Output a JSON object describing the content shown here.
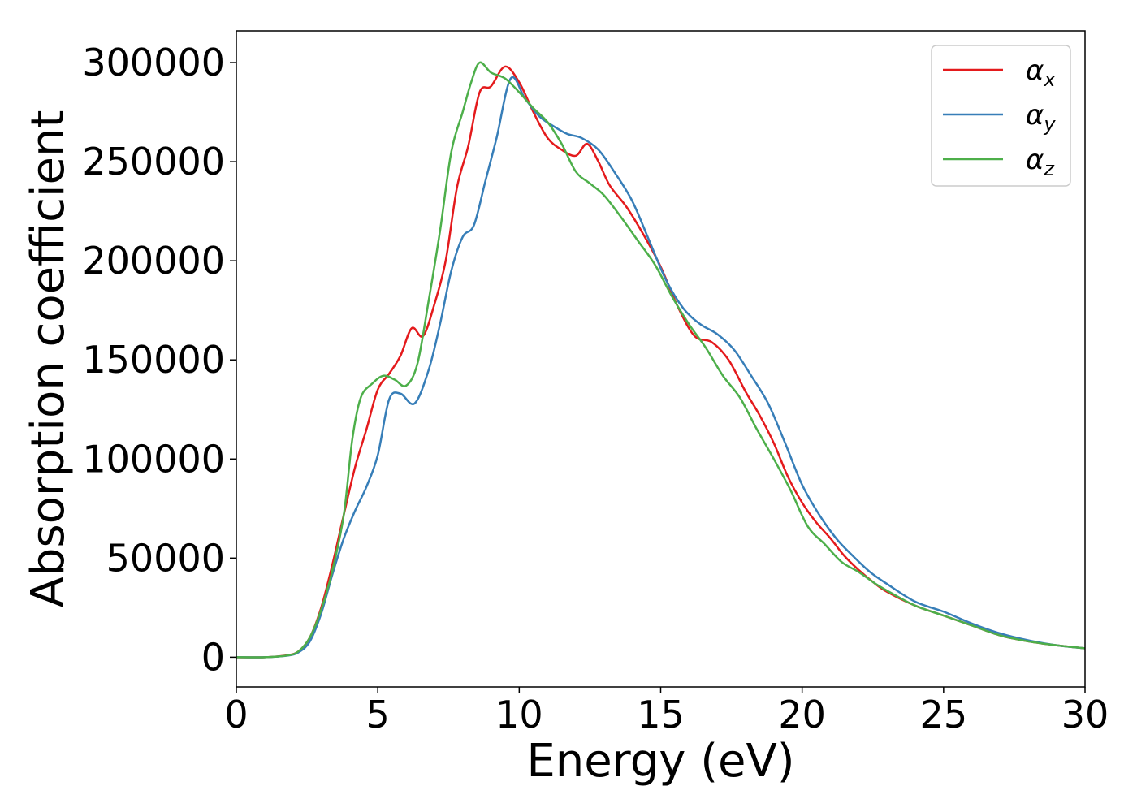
{
  "chart_data": {
    "type": "line",
    "title": "",
    "xlabel": "Energy (eV)",
    "ylabel": "Absorption coefficient",
    "xlim": [
      0,
      30
    ],
    "ylim": [
      -15000,
      316000
    ],
    "xticks": [
      0,
      5,
      10,
      15,
      20,
      25,
      30
    ],
    "yticks": [
      0,
      50000,
      100000,
      150000,
      200000,
      250000,
      300000
    ],
    "xtick_labels": [
      "0",
      "5",
      "10",
      "15",
      "20",
      "25",
      "30"
    ],
    "ytick_labels": [
      "0",
      "50000",
      "100000",
      "150000",
      "200000",
      "250000",
      "300000"
    ],
    "grid": false,
    "legend_position": "top-right",
    "series": [
      {
        "name": "αx",
        "symbol": "α",
        "subscript": "x",
        "color": "#e41a1c",
        "points": [
          [
            0,
            0
          ],
          [
            1,
            0
          ],
          [
            1.8,
            1000
          ],
          [
            2.2,
            3000
          ],
          [
            2.6,
            10000
          ],
          [
            3,
            25000
          ],
          [
            3.4,
            47000
          ],
          [
            3.8,
            72000
          ],
          [
            4.2,
            96000
          ],
          [
            4.6,
            115000
          ],
          [
            5.0,
            135000
          ],
          [
            5.4,
            143000
          ],
          [
            5.8,
            152000
          ],
          [
            6.2,
            166000
          ],
          [
            6.6,
            162000
          ],
          [
            7.0,
            178000
          ],
          [
            7.4,
            200000
          ],
          [
            7.8,
            237000
          ],
          [
            8.2,
            258000
          ],
          [
            8.6,
            285000
          ],
          [
            9.0,
            288000
          ],
          [
            9.5,
            298000
          ],
          [
            10.0,
            290000
          ],
          [
            10.5,
            275000
          ],
          [
            11.0,
            262000
          ],
          [
            11.5,
            256000
          ],
          [
            12.0,
            253000
          ],
          [
            12.4,
            259000
          ],
          [
            12.8,
            250000
          ],
          [
            13.2,
            238000
          ],
          [
            13.8,
            227000
          ],
          [
            14.4,
            213000
          ],
          [
            15.0,
            197000
          ],
          [
            15.6,
            177000
          ],
          [
            16.2,
            162000
          ],
          [
            16.8,
            159000
          ],
          [
            17.4,
            150000
          ],
          [
            18.0,
            134000
          ],
          [
            18.5,
            122000
          ],
          [
            19.0,
            108000
          ],
          [
            19.5,
            91000
          ],
          [
            20.0,
            78000
          ],
          [
            20.5,
            68000
          ],
          [
            21.0,
            60000
          ],
          [
            21.5,
            51000
          ],
          [
            22.0,
            44000
          ],
          [
            22.5,
            38000
          ],
          [
            23.0,
            33000
          ],
          [
            24.0,
            26000
          ],
          [
            25.0,
            21000
          ],
          [
            26.0,
            16000
          ],
          [
            27.0,
            11000
          ],
          [
            28.0,
            8000
          ],
          [
            29.0,
            6000
          ],
          [
            30.0,
            4500
          ]
        ]
      },
      {
        "name": "αy",
        "symbol": "α",
        "subscript": "y",
        "color": "#377eb8",
        "points": [
          [
            0,
            0
          ],
          [
            1,
            0
          ],
          [
            1.8,
            800
          ],
          [
            2.2,
            2500
          ],
          [
            2.6,
            8000
          ],
          [
            3,
            22000
          ],
          [
            3.4,
            42000
          ],
          [
            3.8,
            60000
          ],
          [
            4.2,
            74000
          ],
          [
            4.6,
            86000
          ],
          [
            5.0,
            102000
          ],
          [
            5.4,
            130000
          ],
          [
            5.8,
            133000
          ],
          [
            6.3,
            128000
          ],
          [
            6.8,
            145000
          ],
          [
            7.2,
            168000
          ],
          [
            7.6,
            195000
          ],
          [
            8.0,
            212000
          ],
          [
            8.4,
            218000
          ],
          [
            8.8,
            240000
          ],
          [
            9.2,
            262000
          ],
          [
            9.7,
            292000
          ],
          [
            10.2,
            282000
          ],
          [
            10.7,
            273000
          ],
          [
            11.2,
            268000
          ],
          [
            11.7,
            264000
          ],
          [
            12.2,
            262000
          ],
          [
            12.8,
            256000
          ],
          [
            13.4,
            244000
          ],
          [
            14.0,
            230000
          ],
          [
            14.6,
            210000
          ],
          [
            15.2,
            190000
          ],
          [
            15.8,
            176000
          ],
          [
            16.4,
            168000
          ],
          [
            17.0,
            163000
          ],
          [
            17.6,
            155000
          ],
          [
            18.2,
            142000
          ],
          [
            18.8,
            128000
          ],
          [
            19.4,
            108000
          ],
          [
            20.0,
            87000
          ],
          [
            20.6,
            72000
          ],
          [
            21.2,
            60000
          ],
          [
            21.8,
            51000
          ],
          [
            22.4,
            43000
          ],
          [
            23.0,
            37000
          ],
          [
            24.0,
            28000
          ],
          [
            25.0,
            23000
          ],
          [
            26.0,
            17000
          ],
          [
            27.0,
            12000
          ],
          [
            28.0,
            8500
          ],
          [
            29.0,
            6000
          ],
          [
            30.0,
            4500
          ]
        ]
      },
      {
        "name": "αz",
        "symbol": "α",
        "subscript": "z",
        "color": "#4daf4a",
        "points": [
          [
            0,
            0
          ],
          [
            1,
            0
          ],
          [
            1.8,
            900
          ],
          [
            2.2,
            3000
          ],
          [
            2.6,
            10000
          ],
          [
            3,
            24000
          ],
          [
            3.4,
            44000
          ],
          [
            3.8,
            72000
          ],
          [
            4.1,
            110000
          ],
          [
            4.4,
            131000
          ],
          [
            4.8,
            138000
          ],
          [
            5.2,
            142000
          ],
          [
            5.6,
            140000
          ],
          [
            6.0,
            137000
          ],
          [
            6.4,
            148000
          ],
          [
            6.8,
            180000
          ],
          [
            7.2,
            215000
          ],
          [
            7.6,
            255000
          ],
          [
            8.0,
            275000
          ],
          [
            8.3,
            290000
          ],
          [
            8.6,
            300000
          ],
          [
            9.0,
            295000
          ],
          [
            9.5,
            292000
          ],
          [
            10.0,
            285000
          ],
          [
            10.5,
            277000
          ],
          [
            11.0,
            270000
          ],
          [
            11.5,
            259000
          ],
          [
            12.0,
            245000
          ],
          [
            12.5,
            239000
          ],
          [
            13.0,
            233000
          ],
          [
            13.6,
            222000
          ],
          [
            14.2,
            210000
          ],
          [
            14.8,
            198000
          ],
          [
            15.4,
            182000
          ],
          [
            16.0,
            168000
          ],
          [
            16.6,
            156000
          ],
          [
            17.2,
            142000
          ],
          [
            17.8,
            131000
          ],
          [
            18.4,
            115000
          ],
          [
            19.0,
            100000
          ],
          [
            19.6,
            84000
          ],
          [
            20.2,
            66000
          ],
          [
            20.8,
            57000
          ],
          [
            21.4,
            48000
          ],
          [
            22.0,
            43000
          ],
          [
            22.6,
            37000
          ],
          [
            23.2,
            32000
          ],
          [
            24.0,
            26000
          ],
          [
            25.0,
            21000
          ],
          [
            26.0,
            16000
          ],
          [
            27.0,
            11000
          ],
          [
            28.0,
            8000
          ],
          [
            29.0,
            6000
          ],
          [
            30.0,
            4500
          ]
        ]
      }
    ]
  }
}
